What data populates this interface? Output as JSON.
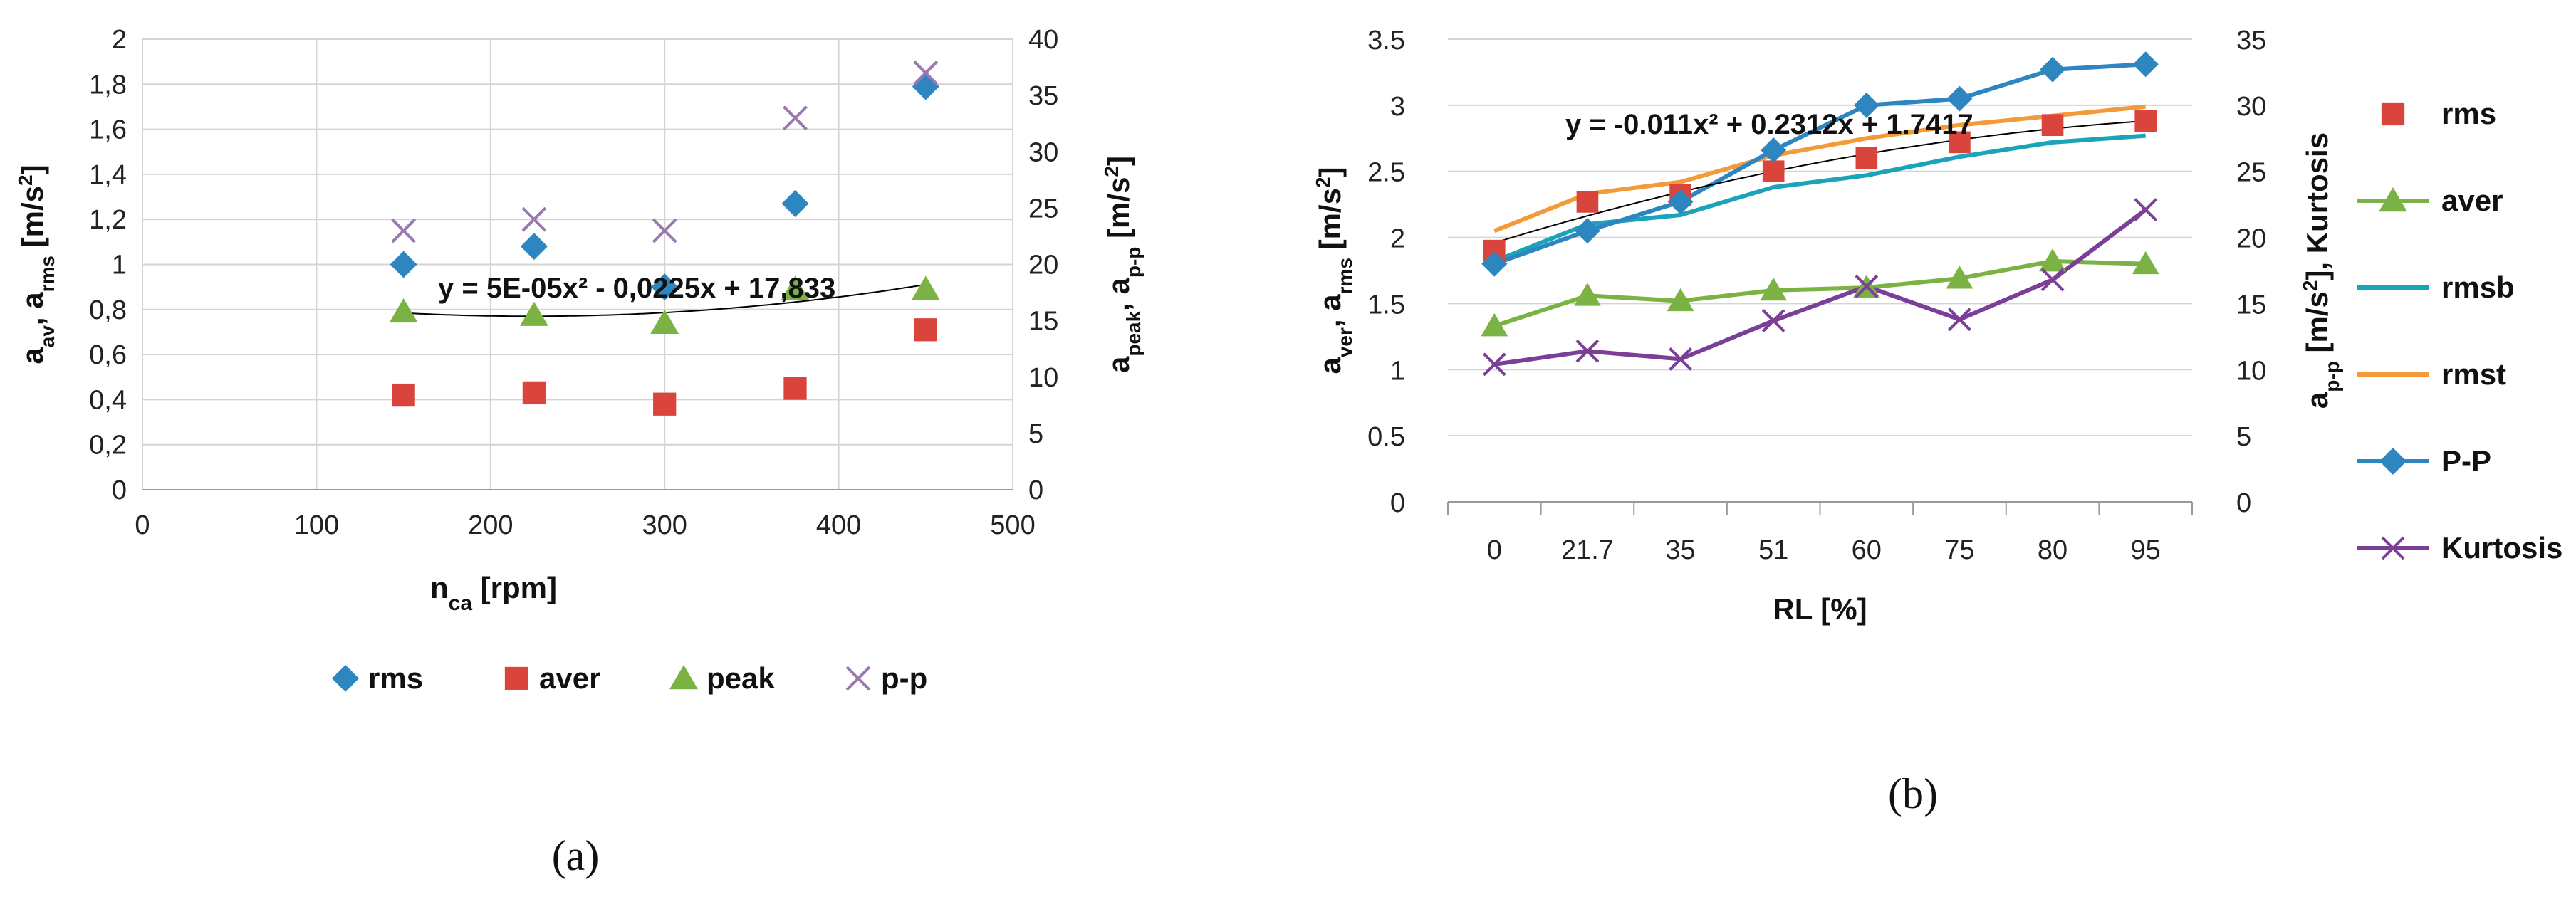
{
  "colors": {
    "rms_blue": "#2E86C1",
    "aver_red": "#D9453D",
    "peak_green": "#7BB244",
    "pp_purple": "#9B79B0",
    "rmsb_teal": "#1BA3B9",
    "rmst_orange": "#F39A3A",
    "pp_line_blue": "#2E86C1",
    "kurt_purple": "#7B3F98",
    "grid": "#d4d4d4",
    "trend": "#000000"
  },
  "chart_data": [
    {
      "id": "a",
      "type": "scatter",
      "panel_label": "(a)",
      "x_label_main": "n",
      "x_label_sub": "ca",
      "x_label_rest": " [rpm]",
      "y_left_label": "a_av, a_rms [m/s2]",
      "y_left_label_parts": [
        "a",
        "av",
        ", a",
        "rms",
        " [m/s",
        "2",
        "]"
      ],
      "y_right_label": "a_peak, a_p-p [m/s2]",
      "y_right_label_parts": [
        "a",
        "peak",
        ", a",
        "p-p",
        " [m/s",
        "2",
        "]"
      ],
      "x_ticks": [
        "0",
        "100",
        "200",
        "300",
        "400",
        "500"
      ],
      "xlim": [
        0,
        500
      ],
      "y_left_ticks": [
        "0",
        "0,2",
        "0,4",
        "0,6",
        "0,8",
        "1",
        "1,2",
        "1,4",
        "1,6",
        "1,8",
        "2"
      ],
      "ylim_left": [
        0,
        2
      ],
      "y_right_ticks": [
        "0",
        "5",
        "10",
        "15",
        "20",
        "25",
        "30",
        "35",
        "40"
      ],
      "ylim_right": [
        0,
        40
      ],
      "series": [
        {
          "name": "rms",
          "axis": "left",
          "marker": "diamond",
          "x": [
            150,
            225,
            300,
            375,
            450
          ],
          "values": [
            1.0,
            1.08,
            0.9,
            1.27,
            1.79
          ]
        },
        {
          "name": "aver",
          "axis": "left",
          "marker": "square",
          "x": [
            150,
            225,
            300,
            375,
            450
          ],
          "values": [
            0.42,
            0.43,
            0.38,
            0.45,
            0.71
          ]
        },
        {
          "name": "peak",
          "axis": "right",
          "marker": "triangle",
          "x": [
            150,
            225,
            300,
            375,
            450
          ],
          "values": [
            15.8,
            15.5,
            14.8,
            17.8,
            17.8
          ]
        },
        {
          "name": "p-p",
          "axis": "right",
          "marker": "x",
          "x": [
            150,
            225,
            300,
            375,
            450
          ],
          "values": [
            23,
            24,
            23,
            33,
            37
          ]
        }
      ],
      "trendline": {
        "of": "peak",
        "equation": "y = 5E-05x² - 0,0225x + 17,833"
      },
      "legend": [
        "rms",
        "aver",
        "peak",
        "p-p"
      ]
    },
    {
      "id": "b",
      "type": "line",
      "panel_label": "(b)",
      "x_label": "RL [%]",
      "y_left_label": "a_ver, a_rms [m/s2]",
      "y_left_label_parts": [
        "a",
        "ver",
        ", a",
        "rms",
        " [m/s",
        "2",
        "]"
      ],
      "y_right_label": "a_p-p [m/s2], Kurtosis",
      "y_right_label_parts": [
        "a",
        "p-p",
        " [m/s",
        "2",
        "], Kurtosis"
      ],
      "categories": [
        "0",
        "21.7",
        "35",
        "51",
        "60",
        "75",
        "80",
        "95"
      ],
      "y_left_ticks": [
        "0",
        "0.5",
        "1",
        "1.5",
        "2",
        "2.5",
        "3",
        "3.5"
      ],
      "ylim_left": [
        0,
        3.5
      ],
      "y_right_ticks": [
        "0",
        "5",
        "10",
        "15",
        "20",
        "25",
        "30",
        "35"
      ],
      "ylim_right": [
        0,
        35
      ],
      "series": [
        {
          "name": "rms",
          "axis": "left",
          "style": "marker",
          "marker": "square",
          "values": [
            1.9,
            2.27,
            2.32,
            2.5,
            2.6,
            2.72,
            2.85,
            2.88
          ]
        },
        {
          "name": "aver",
          "axis": "left",
          "style": "line-marker",
          "marker": "triangle",
          "values": [
            1.33,
            1.56,
            1.52,
            1.6,
            1.62,
            1.69,
            1.82,
            1.8
          ]
        },
        {
          "name": "rmsb",
          "axis": "left",
          "style": "line",
          "values": [
            1.82,
            2.1,
            2.17,
            2.38,
            2.47,
            2.61,
            2.72,
            2.77
          ]
        },
        {
          "name": "rmst",
          "axis": "left",
          "style": "line",
          "values": [
            2.05,
            2.33,
            2.42,
            2.62,
            2.75,
            2.85,
            2.92,
            2.99
          ]
        },
        {
          "name": "P-P",
          "axis": "right",
          "style": "line-marker",
          "marker": "diamond",
          "values": [
            18,
            20.5,
            22.7,
            26.6,
            30,
            30.5,
            32.7,
            33.1
          ]
        },
        {
          "name": "Kurtosis",
          "axis": "right",
          "style": "line-marker",
          "marker": "x",
          "values": [
            10.4,
            11.4,
            10.8,
            13.7,
            16.3,
            13.8,
            16.8,
            22.1
          ]
        }
      ],
      "trendline": {
        "of": "rms",
        "equation": "y = -0.011x² + 0.2312x + 1.7417"
      },
      "legend": [
        "rms",
        "aver",
        "rmsb",
        "rmst",
        "P-P",
        "Kurtosis"
      ]
    }
  ]
}
